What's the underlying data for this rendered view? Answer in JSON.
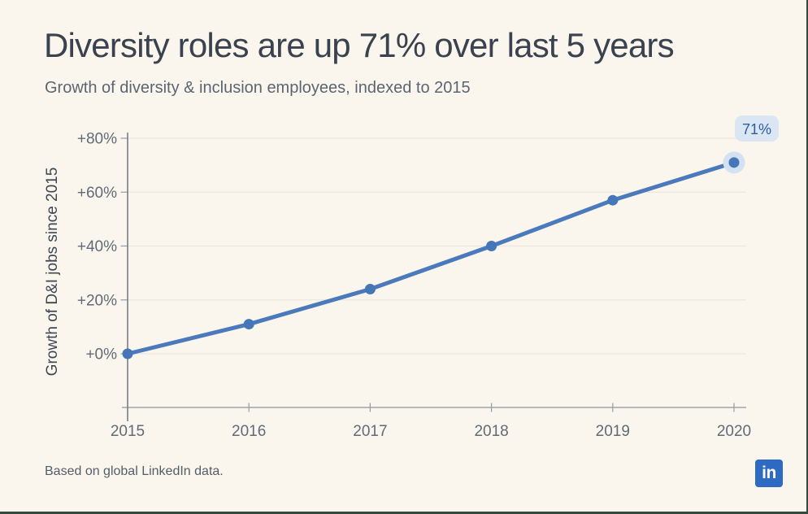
{
  "card": {
    "title": "Diversity roles are up 71% over last 5 years",
    "subtitle": "Growth of diversity & inclusion employees, indexed to 2015",
    "footnote": "Based on global LinkedIn data.",
    "logo_text": "in"
  },
  "colors": {
    "background": "#fbf6ed",
    "border": "#35493e",
    "title_text": "#39424e",
    "subtitle_text": "#5b6572",
    "axis_title_text": "#3d4754",
    "tick_label_text": "#616b78",
    "y_axis_line": "#6e7683",
    "x_axis_line": "#8d94a0",
    "tick_mark": "#959ca6",
    "gridline": "#ebe7e0",
    "series_line": "#4a7abc",
    "data_point": "#4577b8",
    "end_point_halo": "#d3e1f3",
    "badge_background": "#dbe6f4",
    "badge_text": "#2d5d9e",
    "logo_background": "#2e6ac1",
    "logo_text": "#ffffff"
  },
  "chart_data": {
    "type": "line",
    "title": "Diversity roles are up 71% over last 5 years",
    "subtitle": "Growth of diversity & inclusion employees, indexed to 2015",
    "x": [
      2015,
      2016,
      2017,
      2018,
      2019,
      2020
    ],
    "x_tick_labels": [
      "2015",
      "2016",
      "2017",
      "2018",
      "2019",
      "2020"
    ],
    "values": [
      0,
      11,
      24,
      40,
      57,
      71
    ],
    "series_name": "Growth of D&I jobs since 2015",
    "ylabel": "Growth of D&I jobs since 2015",
    "y_ticks": [
      {
        "value": 0,
        "label": "+0%"
      },
      {
        "value": 20,
        "label": "+20%"
      },
      {
        "value": 40,
        "label": "+40%"
      },
      {
        "value": 60,
        "label": "+60%"
      },
      {
        "value": 80,
        "label": "+80%"
      }
    ],
    "ylim": [
      0,
      80
    ],
    "grid": "horizontal",
    "legend": "none",
    "end_label": "71%",
    "source_note": "Based on global LinkedIn data."
  }
}
